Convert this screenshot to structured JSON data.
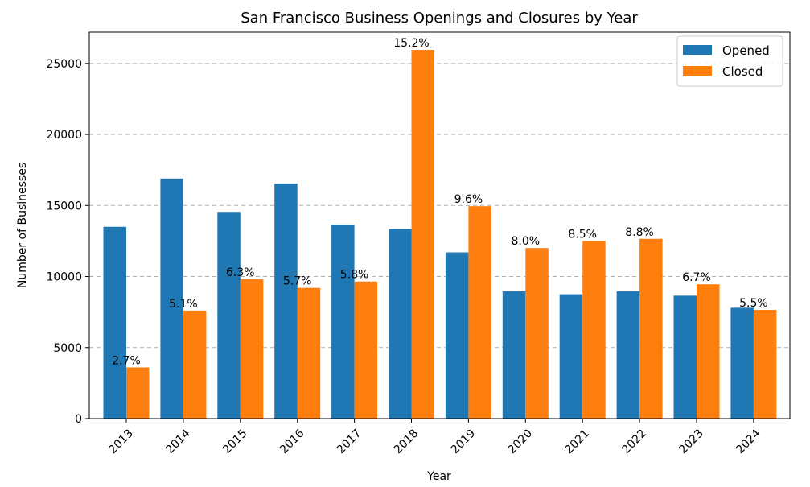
{
  "chart_data": {
    "type": "bar",
    "title": "San Francisco Business Openings and Closures by Year",
    "xlabel": "Year",
    "ylabel": "Number of Businesses",
    "categories": [
      "2013",
      "2014",
      "2015",
      "2016",
      "2017",
      "2018",
      "2019",
      "2020",
      "2021",
      "2022",
      "2023",
      "2024"
    ],
    "series": [
      {
        "name": "Opened",
        "color": "#1f77b4",
        "values": [
          13500,
          16900,
          14550,
          16550,
          13650,
          13350,
          11700,
          8950,
          8750,
          8950,
          8650,
          7800
        ]
      },
      {
        "name": "Closed",
        "color": "#ff7f0e",
        "values": [
          3600,
          7600,
          9800,
          9200,
          9650,
          25950,
          14950,
          12000,
          12500,
          12650,
          9450,
          7650
        ]
      }
    ],
    "closed_rate_labels": [
      "2.7%",
      "5.1%",
      "6.3%",
      "5.7%",
      "5.8%",
      "15.2%",
      "9.6%",
      "8.0%",
      "8.5%",
      "8.8%",
      "6.7%",
      "5.5%"
    ],
    "ylim": [
      0,
      27200
    ],
    "yticks": [
      0,
      5000,
      10000,
      15000,
      20000,
      25000
    ],
    "grid": "y-dashed",
    "legend_position": "top-right"
  }
}
